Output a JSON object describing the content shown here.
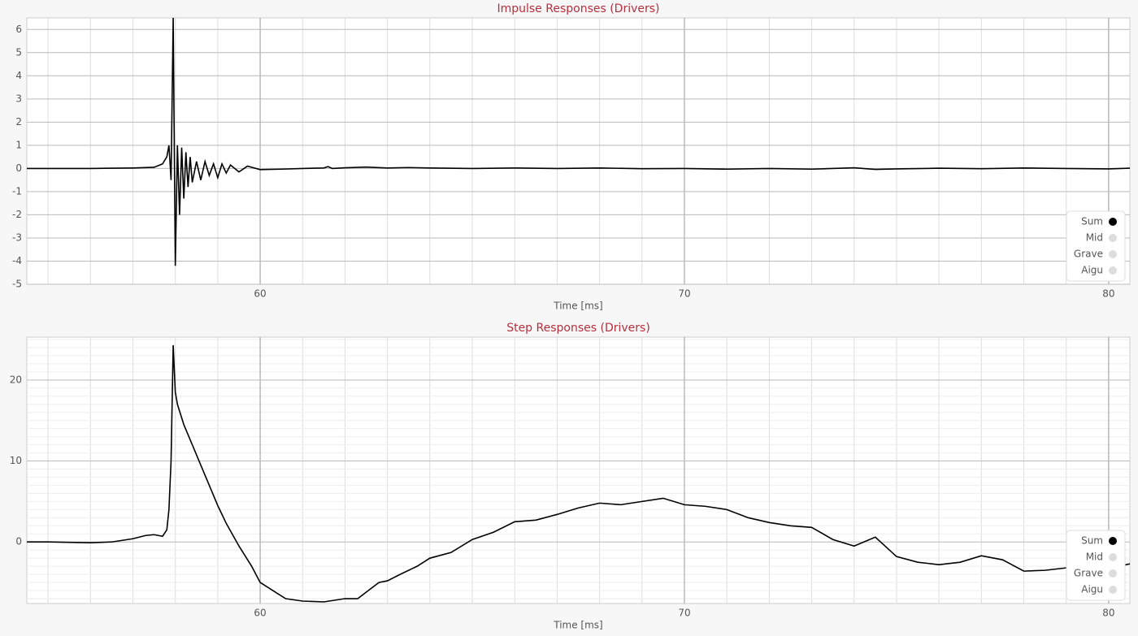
{
  "chart_data": [
    {
      "type": "line",
      "title": "Impulse Responses (Drivers)",
      "x_label": "Time [ms]",
      "xlim": [
        54.5,
        80.5
      ],
      "xticks": [
        60,
        70,
        80
      ],
      "ylim": [
        -5,
        6.5
      ],
      "yticks": [
        -5,
        -4,
        -3,
        -2,
        -1,
        0,
        1,
        2,
        3,
        4,
        5,
        6
      ],
      "grid": true,
      "minor_grid": {
        "x_step": 1,
        "y_step": 1
      },
      "legend": "lower right",
      "series": [
        {
          "name": "Sum",
          "color": "#000000",
          "x": [
            54.5,
            56,
            57,
            57.5,
            57.7,
            57.8,
            57.85,
            57.9,
            57.95,
            58.0,
            58.05,
            58.1,
            58.15,
            58.2,
            58.25,
            58.3,
            58.35,
            58.4,
            58.5,
            58.6,
            58.7,
            58.8,
            58.9,
            59.0,
            59.1,
            59.2,
            59.3,
            59.5,
            59.7,
            60,
            60.5,
            61,
            61.5,
            61.6,
            61.7,
            62,
            62.5,
            63,
            63.5,
            64,
            65,
            66,
            67,
            68,
            69,
            70,
            71,
            72,
            73,
            74,
            74.5,
            75,
            76,
            77,
            78,
            79,
            80,
            80.5
          ],
          "values": [
            0,
            0,
            0.02,
            0.05,
            0.2,
            0.5,
            1.0,
            -0.5,
            6.5,
            -4.2,
            1.0,
            -2.0,
            0.9,
            -1.3,
            0.7,
            -0.8,
            0.5,
            -0.6,
            0.3,
            -0.5,
            0.3,
            -0.3,
            0.2,
            -0.4,
            0.2,
            -0.2,
            0.15,
            -0.15,
            0.1,
            -0.05,
            -0.03,
            0,
            0.02,
            0.08,
            0,
            0.03,
            0.06,
            0.02,
            0.04,
            0.02,
            0,
            0.02,
            0,
            0.02,
            -0.01,
            0,
            -0.03,
            0,
            -0.03,
            0.03,
            -0.04,
            -0.02,
            0.01,
            -0.01,
            0.02,
            0,
            -0.02,
            0.01
          ]
        },
        {
          "name": "Mid",
          "color": "#dddddd"
        },
        {
          "name": "Grave",
          "color": "#dddddd"
        },
        {
          "name": "Aigu",
          "color": "#dddddd"
        }
      ]
    },
    {
      "type": "line",
      "title": "Step Responses (Drivers)",
      "x_label": "Time [ms]",
      "xlim": [
        54.5,
        80.5
      ],
      "xticks": [
        60,
        70,
        80
      ],
      "ylim": [
        -7.6,
        25.3
      ],
      "yticks": [
        0,
        10,
        20
      ],
      "grid": true,
      "minor_grid": {
        "x_step": 1,
        "y_step": 1
      },
      "legend": "lower right",
      "series": [
        {
          "name": "Sum",
          "color": "#000000",
          "x": [
            54.5,
            55,
            56,
            56.5,
            57,
            57.3,
            57.5,
            57.7,
            57.8,
            57.85,
            57.9,
            57.95,
            58.0,
            58.05,
            58.2,
            58.4,
            58.6,
            58.8,
            59.0,
            59.2,
            59.5,
            59.8,
            60,
            60.3,
            60.6,
            61,
            61.5,
            62,
            62.3,
            62.5,
            62.8,
            63,
            63.3,
            63.7,
            64,
            64.5,
            65,
            65.5,
            66,
            66.5,
            67,
            67.5,
            68,
            68.5,
            69,
            69.5,
            70,
            70.5,
            71,
            71.5,
            72,
            72.5,
            73,
            73.5,
            74,
            74.5,
            75,
            75.5,
            76,
            76.5,
            77,
            77.5,
            78,
            78.5,
            79,
            79.5,
            80,
            80.5
          ],
          "values": [
            0,
            0,
            -0.1,
            0,
            0.4,
            0.8,
            0.9,
            0.7,
            1.5,
            4,
            10,
            24.3,
            18.5,
            17,
            14.5,
            12,
            9.5,
            7,
            4.5,
            2.3,
            -0.5,
            -3,
            -5,
            -6,
            -7,
            -7.3,
            -7.4,
            -7,
            -7,
            -6.2,
            -5,
            -4.8,
            -4,
            -3,
            -2,
            -1.3,
            0.3,
            1.2,
            2.5,
            2.7,
            3.4,
            4.2,
            4.8,
            4.6,
            5,
            5.4,
            4.6,
            4.4,
            4.0,
            3.0,
            2.4,
            2.0,
            1.8,
            0.3,
            -0.5,
            0.6,
            -1.8,
            -2.5,
            -2.8,
            -2.5,
            -1.7,
            -2.2,
            -3.6,
            -3.5,
            -3.2,
            -3.2,
            -3.3,
            -2.7
          ]
        },
        {
          "name": "Mid",
          "color": "#dddddd"
        },
        {
          "name": "Grave",
          "color": "#dddddd"
        },
        {
          "name": "Aigu",
          "color": "#dddddd"
        }
      ]
    }
  ]
}
